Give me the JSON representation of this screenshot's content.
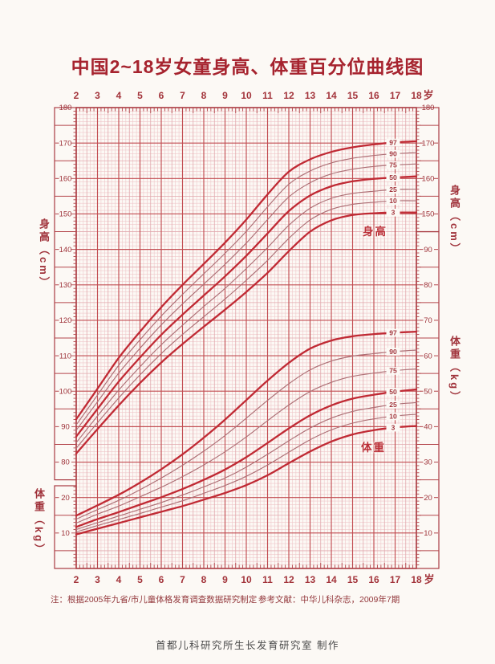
{
  "header": {
    "title": "中国2~18岁女童身高、体重百分位曲线图"
  },
  "footer": {
    "note": "注：根据2005年九省/市儿童体格发育调查数据研究制定",
    "reference": "参考文献：中华儿科杂志，2009年7期",
    "credit": "首都儿科研究所生长发育研究室  制作"
  },
  "colors": {
    "page_bg": "#fcf9f5",
    "grid_minor": "#efc7ca",
    "grid_medium": "#e2a9ae",
    "grid_major": "#c24d52",
    "frame": "#a93b42",
    "curve_bold": "#c02a34",
    "curve_thin": "#ad6f75",
    "tick_text": "#9e3239",
    "axis_text": "#a3343b",
    "title_text": "#a6232e"
  },
  "chart_data": {
    "type": "line",
    "title": "中国2~18岁女童身高、体重百分位曲线图",
    "x_unit_label": "岁",
    "ages": [
      2,
      3,
      4,
      5,
      6,
      7,
      8,
      9,
      10,
      11,
      12,
      13,
      14,
      15,
      16,
      17,
      18
    ],
    "x_range": [
      2,
      18
    ],
    "percentile_labels": [
      "97",
      "90",
      "75",
      "50",
      "25",
      "10",
      "3"
    ],
    "bold_percentiles": [
      "97",
      "50",
      "3"
    ],
    "grid": "fine red grid, minor 1 unit, major 10 units",
    "legend_position": "labels at right end of each curve",
    "height_panel": {
      "in_chart_label": "身高",
      "axis_label": "身高（cm）",
      "unit": "cm",
      "axis_range": [
        80,
        180
      ],
      "left_axis_ticks": [
        180,
        170,
        160,
        150,
        140,
        130,
        120,
        110,
        100,
        90,
        80
      ],
      "right_axis_ticks": [
        180,
        170,
        160,
        150
      ],
      "series": [
        {
          "name": "97",
          "values": [
            92.1,
            100.7,
            109.4,
            116.8,
            123.7,
            130.0,
            135.9,
            141.9,
            148.4,
            155.5,
            161.9,
            165.4,
            167.5,
            168.8,
            169.6,
            170.2,
            170.5
          ]
        },
        {
          "name": "90",
          "values": [
            90.5,
            98.9,
            107.3,
            114.5,
            121.2,
            127.3,
            133.1,
            138.9,
            145.1,
            152.0,
            158.4,
            162.1,
            164.4,
            165.7,
            166.5,
            167.0,
            167.3
          ]
        },
        {
          "name": "75",
          "values": [
            89.0,
            97.0,
            105.1,
            112.1,
            118.7,
            124.6,
            130.2,
            135.8,
            141.8,
            148.4,
            154.8,
            158.8,
            161.3,
            162.6,
            163.4,
            163.8,
            164.1
          ]
        },
        {
          "name": "50",
          "values": [
            87.2,
            95.0,
            102.7,
            109.5,
            115.9,
            121.6,
            127.0,
            132.4,
            138.2,
            144.5,
            150.8,
            155.2,
            157.8,
            159.2,
            159.9,
            160.3,
            160.6
          ]
        },
        {
          "name": "25",
          "values": [
            85.5,
            93.0,
            100.3,
            106.9,
            113.1,
            118.6,
            123.9,
            129.0,
            134.6,
            140.5,
            146.8,
            151.6,
            154.4,
            155.8,
            156.4,
            156.9,
            157.0
          ]
        },
        {
          "name": "10",
          "values": [
            83.9,
            91.1,
            98.1,
            104.6,
            110.6,
            116.0,
            121.0,
            126.0,
            131.3,
            136.9,
            143.1,
            148.3,
            151.3,
            152.7,
            153.3,
            153.7,
            153.7
          ]
        },
        {
          "name": "3",
          "values": [
            82.4,
            89.3,
            96.0,
            102.3,
            108.1,
            113.3,
            118.2,
            123.0,
            128.0,
            133.4,
            139.5,
            145.0,
            148.2,
            149.7,
            150.2,
            150.4,
            150.4
          ]
        }
      ]
    },
    "weight_panel": {
      "in_chart_label": "体重",
      "axis_label": "体重（kg）",
      "unit": "kg",
      "axis_range": [
        0,
        95
      ],
      "left_axis_ticks": [
        20,
        10
      ],
      "right_axis_ticks": [
        90,
        80,
        70,
        60,
        50,
        40,
        30,
        20,
        10
      ],
      "series": [
        {
          "name": "97",
          "values": [
            14.9,
            17.8,
            20.8,
            24.2,
            28.0,
            32.2,
            36.9,
            42.0,
            47.5,
            53.0,
            58.0,
            62.0,
            64.3,
            65.5,
            66.1,
            66.5,
            66.8
          ]
        },
        {
          "name": "90",
          "values": [
            13.9,
            16.6,
            19.2,
            22.2,
            25.5,
            29.1,
            33.1,
            37.5,
            42.4,
            47.4,
            52.1,
            56.0,
            58.5,
            59.9,
            60.6,
            61.2,
            61.6
          ]
        },
        {
          "name": "75",
          "values": [
            12.8,
            15.3,
            17.6,
            20.2,
            22.9,
            25.9,
            29.2,
            32.9,
            37.1,
            41.7,
            46.1,
            49.9,
            52.5,
            54.2,
            55.1,
            55.8,
            56.3
          ]
        },
        {
          "name": "50",
          "values": [
            11.7,
            13.9,
            15.9,
            18.0,
            20.1,
            22.4,
            25.0,
            27.9,
            31.4,
            35.4,
            39.5,
            43.2,
            46.0,
            47.9,
            49.0,
            49.9,
            50.5
          ]
        },
        {
          "name": "25",
          "values": [
            11.0,
            12.9,
            14.8,
            16.7,
            18.6,
            20.7,
            23.0,
            25.5,
            28.6,
            32.2,
            36.0,
            39.6,
            42.4,
            44.3,
            45.4,
            46.3,
            46.8
          ]
        },
        {
          "name": "10",
          "values": [
            10.3,
            12.1,
            13.8,
            15.5,
            17.3,
            19.1,
            21.2,
            23.4,
            26.0,
            29.2,
            32.8,
            36.3,
            39.1,
            41.0,
            42.2,
            43.0,
            43.5
          ]
        },
        {
          "name": "3",
          "values": [
            9.6,
            11.2,
            12.8,
            14.4,
            16.0,
            17.6,
            19.4,
            21.3,
            23.5,
            26.3,
            29.7,
            33.0,
            35.8,
            37.8,
            39.0,
            39.8,
            40.2
          ]
        }
      ]
    }
  }
}
